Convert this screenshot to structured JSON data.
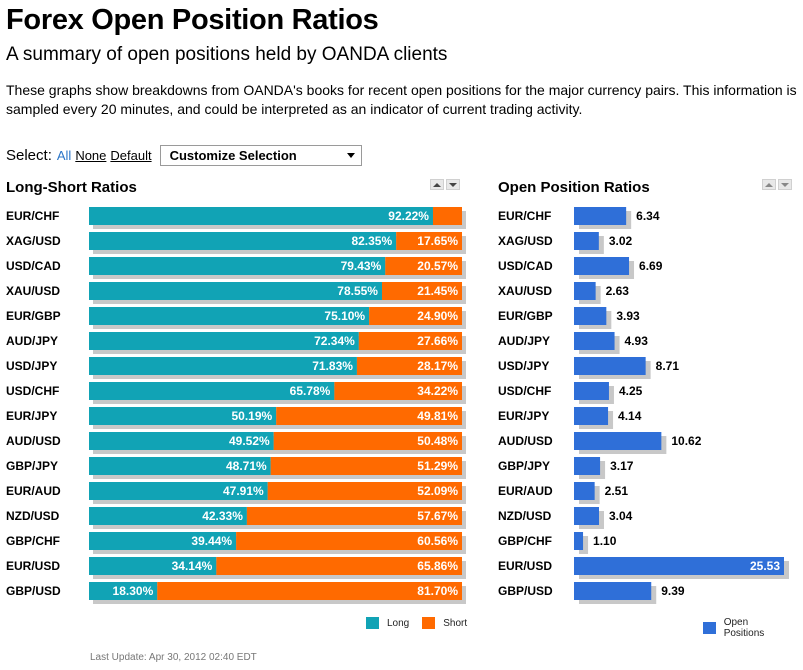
{
  "header": {
    "title": "Forex Open Position Ratios",
    "subtitle": "A summary of open positions held by OANDA clients",
    "description": "These graphs show breakdowns from OANDA's books for recent open positions for the major currency pairs. This information is sampled every 20 minutes, and could be interpreted as an indicator of current trading activity."
  },
  "select": {
    "label": "Select:",
    "all": "All",
    "none": "None",
    "default": "Default",
    "dropdown": "Customize Selection"
  },
  "colors": {
    "long": "#11a3b5",
    "short": "#ff6a00",
    "open": "#2f6fd8",
    "shadow": "#c8c8c8"
  },
  "icons": [
    "sort-up-icon",
    "sort-down-icon",
    "dropdown-caret-icon"
  ],
  "chart_data": [
    {
      "type": "bar",
      "title": "Long-Short Ratios",
      "stacked": true,
      "orientation": "horizontal",
      "xlim": [
        0,
        100
      ],
      "categories": [
        "EUR/CHF",
        "XAG/USD",
        "USD/CAD",
        "XAU/USD",
        "EUR/GBP",
        "AUD/JPY",
        "USD/JPY",
        "USD/CHF",
        "EUR/JPY",
        "AUD/USD",
        "GBP/JPY",
        "EUR/AUD",
        "NZD/USD",
        "GBP/CHF",
        "EUR/USD",
        "GBP/USD"
      ],
      "series": [
        {
          "name": "Long",
          "values": [
            92.22,
            82.35,
            79.43,
            78.55,
            75.1,
            72.34,
            71.83,
            65.78,
            50.19,
            49.52,
            48.71,
            47.91,
            42.33,
            39.44,
            34.14,
            18.3
          ]
        },
        {
          "name": "Short",
          "values": [
            7.78,
            17.65,
            20.57,
            21.45,
            24.9,
            27.66,
            28.17,
            34.22,
            49.81,
            50.48,
            51.29,
            52.09,
            57.67,
            60.56,
            65.86,
            81.7
          ]
        }
      ],
      "labels": {
        "Long": [
          "92.22%",
          "82.35%",
          "79.43%",
          "78.55%",
          "75.10%",
          "72.34%",
          "71.83%",
          "65.78%",
          "50.19%",
          "49.52%",
          "48.71%",
          "47.91%",
          "42.33%",
          "39.44%",
          "34.14%",
          "18.30%"
        ],
        "Short": [
          "",
          "17.65%",
          "20.57%",
          "21.45%",
          "24.90%",
          "27.66%",
          "28.17%",
          "34.22%",
          "49.81%",
          "50.48%",
          "51.29%",
          "52.09%",
          "57.67%",
          "60.56%",
          "65.86%",
          "81.70%"
        ]
      },
      "legend": "bottom-right"
    },
    {
      "type": "bar",
      "title": "Open Position Ratios",
      "orientation": "horizontal",
      "xlim": [
        0,
        25.53
      ],
      "categories": [
        "EUR/CHF",
        "XAG/USD",
        "USD/CAD",
        "XAU/USD",
        "EUR/GBP",
        "AUD/JPY",
        "USD/JPY",
        "USD/CHF",
        "EUR/JPY",
        "AUD/USD",
        "GBP/JPY",
        "EUR/AUD",
        "NZD/USD",
        "GBP/CHF",
        "EUR/USD",
        "GBP/USD"
      ],
      "series": [
        {
          "name": "Open Positions",
          "values": [
            6.34,
            3.02,
            6.69,
            2.63,
            3.93,
            4.93,
            8.71,
            4.25,
            4.14,
            10.62,
            3.17,
            2.51,
            3.04,
            1.1,
            25.53,
            9.39
          ]
        }
      ],
      "labels": [
        "6.34",
        "3.02",
        "6.69",
        "2.63",
        "3.93",
        "4.93",
        "8.71",
        "4.25",
        "4.14",
        "10.62",
        "3.17",
        "2.51",
        "3.04",
        "1.10",
        "25.53",
        "9.39"
      ],
      "legend": "bottom-right"
    }
  ],
  "footer": {
    "last_update": "Last Update: Apr 30, 2012 02:40 EDT"
  }
}
